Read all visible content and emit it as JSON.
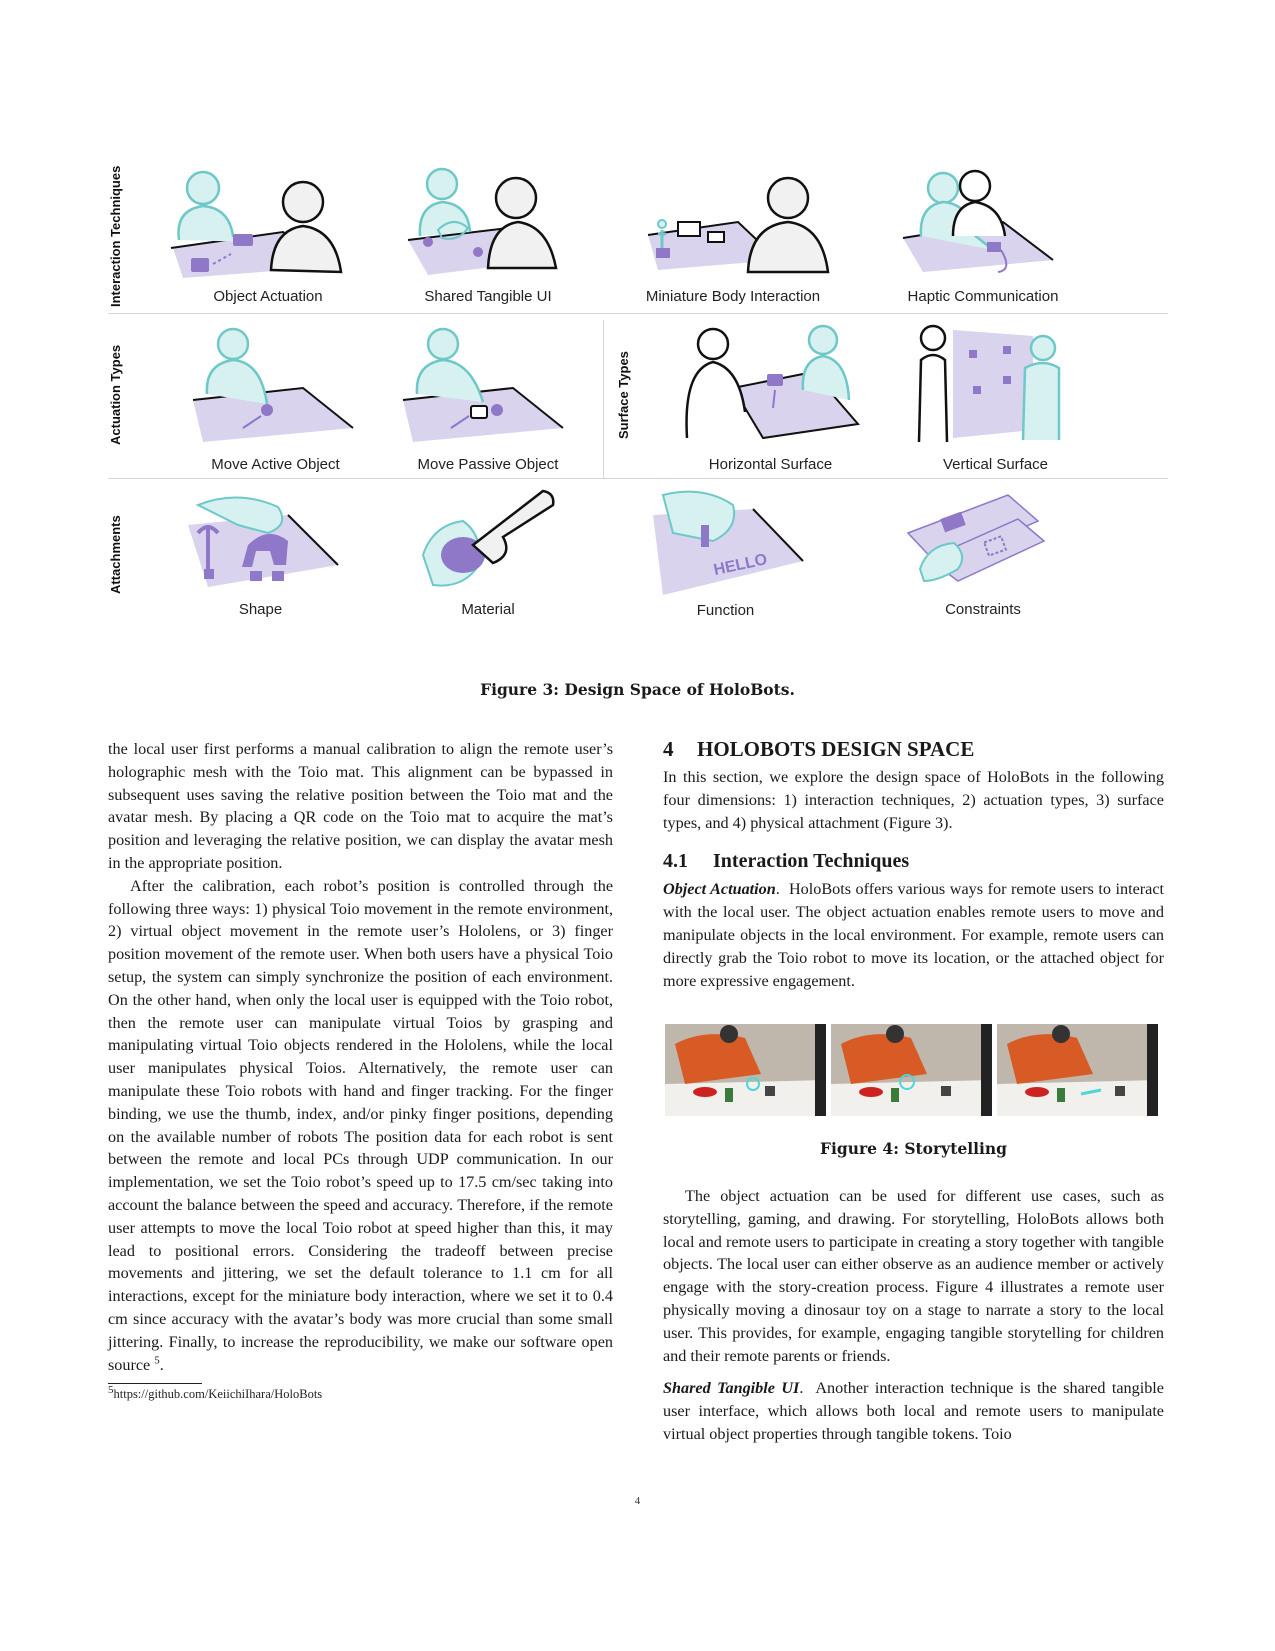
{
  "figure3": {
    "rows": [
      {
        "label": "Interaction Techniques",
        "cells": [
          {
            "caption": "Object Actuation"
          },
          {
            "caption": "Shared Tangible UI"
          },
          {
            "caption": "Miniature Body Interaction"
          },
          {
            "caption": "Haptic Communication"
          }
        ]
      },
      {
        "label": "Actuation Types",
        "cells": [
          {
            "caption": "Move Active Object"
          },
          {
            "caption": "Move Passive Object"
          }
        ]
      },
      {
        "label": "Surface Types",
        "cells": [
          {
            "caption": "Horizontal Surface"
          },
          {
            "caption": "Vertical Surface"
          }
        ]
      },
      {
        "label": "Attachments",
        "cells": [
          {
            "caption": "Shape"
          },
          {
            "caption": "Material"
          },
          {
            "caption": "Function"
          },
          {
            "caption": "Constraints"
          }
        ]
      }
    ],
    "caption": "Figure 3: Design Space of HoloBots.",
    "colors": {
      "avatar": "#6fc8c8",
      "avatar_fill": "#d6f1ef",
      "mat": "#d9d3ee",
      "robot": "#8e78c7",
      "user": "#111111"
    }
  },
  "left_column": {
    "para1": "the local user first performs a manual calibration to align the remote user’s holographic mesh with the Toio mat. This alignment can be bypassed in subsequent uses saving the relative position between the Toio mat and the avatar mesh. By placing a QR code on the Toio mat to acquire the mat’s position and leveraging the relative position, we can display the avatar mesh in the appropriate position.",
    "para2": "After the calibration, each robot’s position is controlled through the following three ways: 1) physical Toio movement in the remote environment, 2) virtual object movement in the remote user’s Hololens, or 3) finger position movement of the remote user. When both users have a physical Toio setup, the system can simply synchronize the position of each environment. On the other hand, when only the local user is equipped with the Toio robot, then the remote user can manipulate virtual Toios by grasping and manipulating virtual Toio objects rendered in the Hololens, while the local user manipulates physical Toios. Alternatively, the remote user can manipulate these Toio robots with hand and finger tracking. For the finger binding, we use the thumb, index, and/or pinky finger positions, depending on the available number of robots The position data for each robot is sent between the remote and local PCs through UDP communication. In our implementation, we set the Toio robot’s speed up to 17.5 cm/sec taking into account the balance between the speed and accuracy. Therefore, if the remote user attempts to move the local Toio robot at speed higher than this, it may lead to positional errors. Considering the tradeoff between precise movements and jittering, we set the default tolerance to 1.1 cm for all interactions, except for the miniature body interaction, where we set it to 0.4 cm since accuracy with the avatar’s body was more crucial than some small jittering. Finally, to increase the reproducibility, we make our software open source",
    "para2_footnote_ref": "5",
    "para2_end": ".",
    "footnote_mark": "5",
    "footnote_text": "https://github.com/KeiichiIhara/HoloBots"
  },
  "right_column": {
    "section_num": "4",
    "section_title": "HOLOBOTS DESIGN SPACE",
    "section_intro": "In this section, we explore the design space of HoloBots in the following four dimensions: 1) interaction techniques, 2) actuation types, 3) surface types, and 4) physical attachment (Figure 3).",
    "subsection_num": "4.1",
    "subsection_title": "Interaction Techniques",
    "object_actuation_head": "Object Actuation",
    "object_actuation_text": "HoloBots offers various ways for remote users to interact with the local user. The object actuation enables remote users to move and manipulate objects in the local environment. For example, remote users can directly grab the Toio robot to move its location, or the attached object for more expressive engagement.",
    "figure4_caption": "Figure 4: Storytelling",
    "storytelling_text": "The object actuation can be used for different use cases, such as storytelling, gaming, and drawing. For storytelling, HoloBots allows both local and remote users to participate in creating a story together with tangible objects. The local user can either observe as an audience member or actively engage with the story-creation process. Figure 4 illustrates a remote user physically moving a dinosaur toy on a stage to narrate a story to the local user. This provides, for example, engaging tangible storytelling for children and their remote parents or friends.",
    "shared_tangible_head": "Shared Tangible UI",
    "shared_tangible_text": "Another interaction technique is the shared tangible user interface, which allows both local and remote users to manipulate virtual object properties through tangible tokens. Toio"
  },
  "page_number": "4"
}
